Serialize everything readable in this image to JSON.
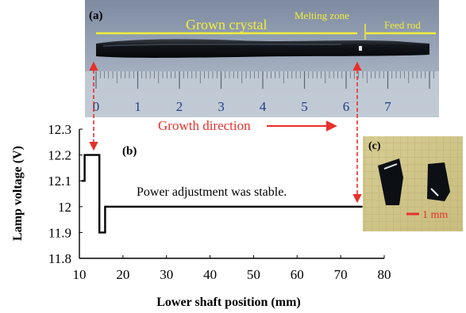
{
  "panel_a": {
    "label": "(a)",
    "ruler_numbers": [
      "0",
      "1",
      "2",
      "3",
      "4",
      "5",
      "6",
      "7"
    ],
    "region_labels": {
      "grown_crystal": "Grown crystal",
      "melting_zone": "Melting zone",
      "feed_rod": "Feed rod"
    },
    "growth_direction": "Growth direction"
  },
  "panel_c": {
    "label": "(c)",
    "scale_label": "1 mm"
  },
  "colors": {
    "annotation_yellow": "#f2ef3a",
    "arrow_red": "#e8302a",
    "line": "#000000"
  },
  "chart_data": {
    "type": "line",
    "panel_label": "(b)",
    "title": "",
    "xlabel": "Lower shaft position  (mm)",
    "ylabel": "Lamp voltage  (V)",
    "xlim": [
      10,
      80
    ],
    "ylim": [
      11.8,
      12.3
    ],
    "x_ticks": [
      10,
      20,
      30,
      40,
      50,
      60,
      70,
      80
    ],
    "x_tick_labels": [
      "10",
      "20",
      "30",
      "40",
      "50",
      "60",
      "70",
      "80"
    ],
    "y_ticks": [
      11.8,
      11.9,
      12.0,
      12.1,
      12.2,
      12.3
    ],
    "y_tick_labels": [
      "11.8",
      "11.9",
      "12",
      "12.1",
      "12.2",
      "12.3"
    ],
    "grid": false,
    "series": [
      {
        "name": "",
        "x": [
          10.5,
          11.2,
          11.2,
          14.6,
          14.6,
          15.9,
          15.9,
          75
        ],
        "y": [
          12.1,
          12.1,
          12.2,
          12.2,
          11.9,
          11.9,
          12.0,
          12.0
        ]
      }
    ],
    "annotation": "Power adjustment  was stable."
  }
}
